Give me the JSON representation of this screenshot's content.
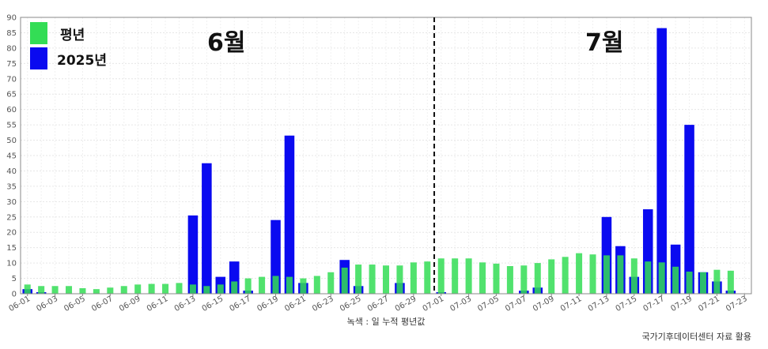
{
  "chart_data": {
    "type": "bar",
    "categories": [
      "06-01",
      "06-02",
      "06-03",
      "06-04",
      "06-05",
      "06-06",
      "06-07",
      "06-08",
      "06-09",
      "06-10",
      "06-11",
      "06-12",
      "06-13",
      "06-14",
      "06-15",
      "06-16",
      "06-17",
      "06-18",
      "06-19",
      "06-20",
      "06-21",
      "06-22",
      "06-23",
      "06-24",
      "06-25",
      "06-26",
      "06-27",
      "06-28",
      "06-29",
      "06-30",
      "07-01",
      "07-02",
      "07-03",
      "07-04",
      "07-05",
      "07-06",
      "07-07",
      "07-08",
      "07-09",
      "07-10",
      "07-11",
      "07-12",
      "07-13",
      "07-14",
      "07-15",
      "07-16",
      "07-17",
      "07-18",
      "07-19",
      "07-20",
      "07-21",
      "07-22"
    ],
    "x_tick_labels": [
      "06-01",
      "06-03",
      "06-05",
      "06-07",
      "06-09",
      "06-11",
      "06-13",
      "06-15",
      "06-17",
      "06-19",
      "06-21",
      "06-23",
      "06-25",
      "06-27",
      "06-29",
      "07-01",
      "07-03",
      "07-05",
      "07-07",
      "07-09",
      "07-11",
      "07-13",
      "07-15",
      "07-17",
      "07-19",
      "07-21",
      "07-23"
    ],
    "series": [
      {
        "name": "2025년",
        "color": "#0a0af0",
        "values": [
          1.5,
          0.5,
          0,
          0,
          0,
          0,
          0,
          0,
          0,
          0,
          0,
          0,
          25.5,
          42.5,
          5.5,
          10.5,
          1,
          0,
          24,
          51.5,
          3.5,
          0,
          0,
          11,
          2.5,
          0,
          0,
          3.5,
          0,
          0,
          0.5,
          0,
          0,
          0,
          0,
          0,
          1,
          2,
          0,
          0,
          0,
          0,
          25,
          15.5,
          5.5,
          27.5,
          86.5,
          16,
          55,
          7,
          4,
          1
        ]
      },
      {
        "name": "평년",
        "color": "#33dd55",
        "values": [
          3,
          2.5,
          2.5,
          2.5,
          1.8,
          1.5,
          2,
          2.5,
          3,
          3.2,
          3.2,
          3.5,
          3,
          2.5,
          3,
          4,
          5,
          5.5,
          5.8,
          5.5,
          5,
          5.8,
          7,
          8.5,
          9.5,
          9.5,
          9.2,
          9.2,
          10.2,
          10.5,
          11.5,
          11.5,
          11.5,
          10.2,
          9.8,
          9,
          9.2,
          10,
          11.2,
          12,
          13.2,
          12.8,
          12.5,
          12.5,
          11.5,
          10.5,
          10.2,
          8.8,
          7.2,
          7,
          7.8,
          7.5
        ]
      }
    ],
    "ylim": [
      0,
      90
    ],
    "y_ticks": [
      0,
      5,
      10,
      15,
      20,
      25,
      30,
      35,
      40,
      45,
      50,
      55,
      60,
      65,
      70,
      75,
      80,
      85,
      90
    ],
    "grid": true,
    "legend_position": "top-left",
    "annotations": {
      "june_label": "6월",
      "july_label": "7월",
      "divider_between": [
        "06-30",
        "07-01"
      ]
    },
    "xlabel": "녹색 : 일 누적 평년값",
    "source_note": "국가기후데이터센터 자료 활용"
  }
}
